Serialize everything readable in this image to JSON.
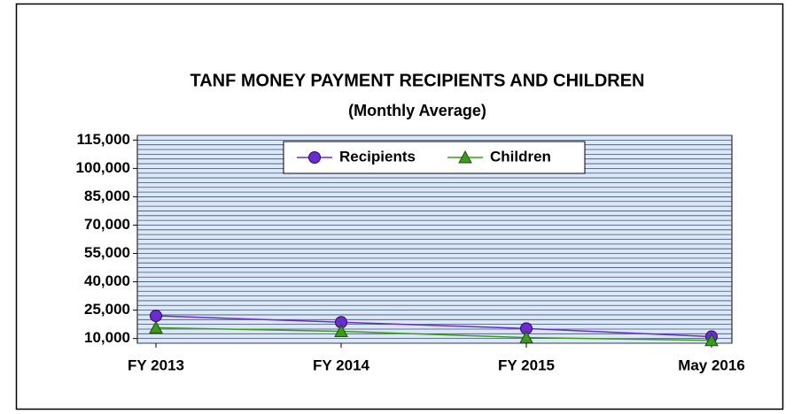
{
  "chart_data": {
    "type": "line",
    "title": "TANF MONEY PAYMENT RECIPIENTS AND CHILDREN",
    "subtitle": "(Monthly Average)",
    "categories": [
      "FY 2013",
      "FY 2014",
      "FY 2015",
      "May  2016"
    ],
    "series": [
      {
        "name": "Recipients",
        "color": "#6a2ccf",
        "marker": "circle",
        "values": [
          22000,
          18600,
          15300,
          11000
        ]
      },
      {
        "name": "Children",
        "color": "#3c9a1e",
        "marker": "triangle",
        "values": [
          15700,
          13800,
          10500,
          9000
        ]
      }
    ],
    "ylim": [
      7500,
      117500
    ],
    "yticks": [
      {
        "value": 10000,
        "label": "10,000"
      },
      {
        "value": 25000,
        "label": "25,000"
      },
      {
        "value": 40000,
        "label": "40,000"
      },
      {
        "value": 55000,
        "label": "55,000"
      },
      {
        "value": 70000,
        "label": "70,000"
      },
      {
        "value": 85000,
        "label": "85,000"
      },
      {
        "value": 100000,
        "label": "100,000"
      },
      {
        "value": 115000,
        "label": "115,000"
      }
    ],
    "yminor_ticks": [
      7500,
      10000,
      12500,
      15000,
      17500,
      20000,
      22500,
      25000,
      27500,
      30000,
      32500,
      35000,
      37500,
      40000,
      42500,
      45000,
      47500,
      50000,
      52500,
      55000,
      57500,
      60000,
      62500,
      65000,
      67500,
      70000,
      72500,
      75000,
      77500,
      80000,
      82500,
      85000,
      87500,
      90000,
      92500,
      95000,
      97500,
      100000,
      102500,
      105000,
      107500,
      110000,
      112500,
      115000,
      117500
    ],
    "grid": true,
    "legend": "top"
  }
}
